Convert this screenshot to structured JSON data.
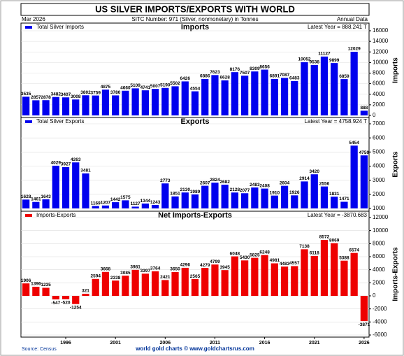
{
  "title": "US SILVER IMPORTS/EXPORTS WITH WORLD",
  "header": {
    "date": "Mar  2026",
    "sitc": "SITC Number: 971 (Silver, nonmonetary) in Tonnes",
    "frequency": "Annual Data"
  },
  "footer": {
    "source": "Source: Census",
    "credit": "world gold charts © www.goldchartsrus.com"
  },
  "chart_data": [
    {
      "type": "bar",
      "title": "Imports",
      "ylabel": "Imports",
      "latest": "Latest Year = 888.241 T",
      "grid": true,
      "x": [
        1992,
        1993,
        1994,
        1995,
        1996,
        1997,
        1998,
        1999,
        2000,
        2001,
        2002,
        2003,
        2004,
        2005,
        2006,
        2007,
        2008,
        2009,
        2010,
        2011,
        2012,
        2013,
        2014,
        2015,
        2016,
        2017,
        2018,
        2019,
        2020,
        2021,
        2022,
        2023,
        2024,
        2025,
        2026
      ],
      "series": [
        {
          "name": "Total Silver Imports",
          "color": "#0000ee",
          "values": [
            3535,
            2857,
            2878,
            3482,
            3407,
            3008,
            3802,
            3759,
            4875,
            3780,
            4660,
            5109,
            4741,
            5007,
            5190,
            5502,
            6426,
            4554,
            6886,
            7623,
            6628,
            8176,
            7507,
            8309,
            8656,
            6891,
            7087,
            6483,
            10052,
            9538,
            11127,
            9899,
            6859,
            12029,
            888
          ]
        }
      ],
      "ylim": [
        0,
        16000
      ],
      "yticks": [
        0,
        2000,
        4000,
        6000,
        8000,
        10000,
        12000,
        14000,
        16000
      ]
    },
    {
      "type": "bar",
      "title": "Exports",
      "ylabel": "Exports",
      "latest": "Latest Year = 4758.924 T",
      "grid": true,
      "x": [
        1992,
        1993,
        1994,
        1995,
        1996,
        1997,
        1998,
        1999,
        2000,
        2001,
        2002,
        2003,
        2004,
        2005,
        2006,
        2007,
        2008,
        2009,
        2010,
        2011,
        2012,
        2013,
        2014,
        2015,
        2016,
        2017,
        2018,
        2019,
        2020,
        2021,
        2022,
        2023,
        2024,
        2025,
        2026
      ],
      "series": [
        {
          "name": "Total Silver Exports",
          "color": "#0000ee",
          "values": [
            1628,
            1461,
            1643,
            4029,
            3927,
            4263,
            3481,
            1169,
            1207,
            1442,
            1575,
            1127,
            1344,
            1243,
            2773,
            1851,
            2130,
            1989,
            2607,
            2824,
            2682,
            2128,
            2077,
            2483,
            2408,
            1910,
            2604,
            1926,
            2914,
            3420,
            2556,
            1831,
            1471,
            5454,
            4759
          ]
        }
      ],
      "ylim": [
        1000,
        7000
      ],
      "yticks": [
        1000,
        2000,
        3000,
        4000,
        5000,
        6000,
        7000
      ]
    },
    {
      "type": "bar",
      "title": "Net Imports-Exports",
      "ylabel": "Imports-Exports",
      "latest": "Latest Year = -3870.683",
      "grid": true,
      "x": [
        1992,
        1993,
        1994,
        1995,
        1996,
        1997,
        1998,
        1999,
        2000,
        2001,
        2002,
        2003,
        2004,
        2005,
        2006,
        2007,
        2008,
        2009,
        2010,
        2011,
        2012,
        2013,
        2014,
        2015,
        2016,
        2017,
        2018,
        2019,
        2020,
        2021,
        2022,
        2023,
        2024,
        2025,
        2026
      ],
      "series": [
        {
          "name": "Imports-Exports",
          "color": "#ee0000",
          "values": [
            1906,
            1396,
            1235,
            -547,
            -520,
            -1254,
            321,
            2594,
            3668,
            2338,
            3085,
            3981,
            3397,
            3764,
            2421,
            3650,
            4296,
            2565,
            4279,
            4799,
            3945,
            6048,
            5430,
            5825,
            6248,
            4981,
            4483,
            4557,
            7138,
            6118,
            8572,
            8069,
            5388,
            6574,
            -3871
          ]
        }
      ],
      "ylim": [
        -6000,
        12000
      ],
      "yticks": [
        -6000,
        -4000,
        -2000,
        0,
        2000,
        4000,
        6000,
        8000,
        10000,
        12000
      ],
      "xticks": [
        1996,
        2001,
        2006,
        2011,
        2016,
        2021,
        2026
      ]
    }
  ]
}
